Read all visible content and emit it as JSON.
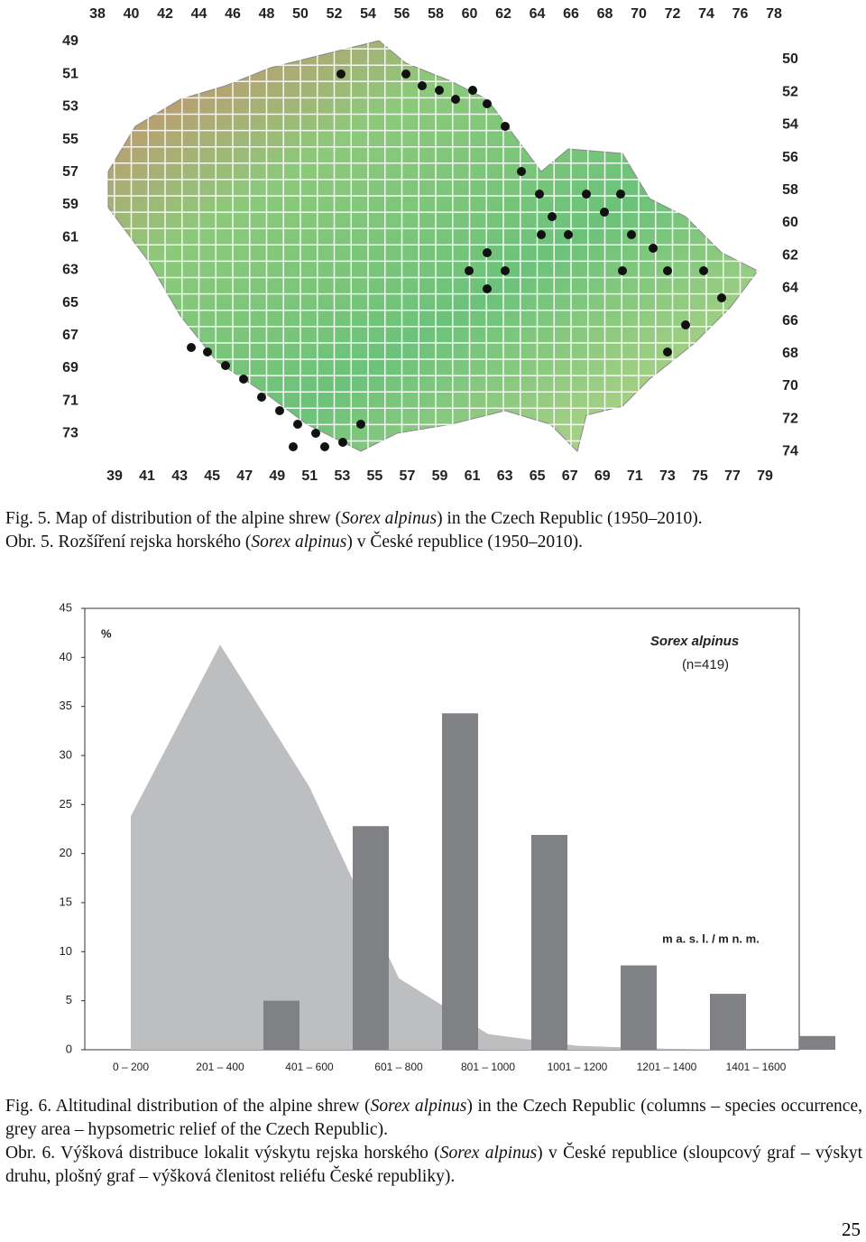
{
  "map": {
    "top_labels": [
      "38",
      "40",
      "42",
      "44",
      "46",
      "48",
      "50",
      "52",
      "54",
      "56",
      "58",
      "60",
      "62",
      "64",
      "66",
      "68",
      "70",
      "72",
      "74",
      "76",
      "78"
    ],
    "bottom_labels": [
      "39",
      "41",
      "43",
      "45",
      "47",
      "49",
      "51",
      "53",
      "55",
      "57",
      "59",
      "61",
      "63",
      "65",
      "67",
      "69",
      "71",
      "73",
      "75",
      "77",
      "79"
    ],
    "left_labels": [
      "49",
      "51",
      "53",
      "55",
      "57",
      "59",
      "61",
      "63",
      "65",
      "67",
      "69",
      "71",
      "73"
    ],
    "right_labels": [
      "50",
      "52",
      "54",
      "56",
      "58",
      "60",
      "62",
      "64",
      "66",
      "68",
      "70",
      "72",
      "74"
    ]
  },
  "fig5_caption_en": [
    "Fig. 5. Map of distribution of the alpine shrew (",
    "Sorex alpinus",
    ") in the Czech Republic (1950–2010)."
  ],
  "fig5_caption_cz": [
    "Obr. 5. Rozšíření rejska horského (",
    "Sorex alpinus",
    ") v České republice (1950–2010)."
  ],
  "chart_data": {
    "type": "bar",
    "y_unit_label": "%",
    "annotation_title": "Sorex alpinus",
    "annotation_n": "(n=419)",
    "x_label": "m a. s. l. / m n. m.",
    "categories": [
      "0 – 200",
      "201 – 400",
      "401 – 600",
      "601 – 800",
      "801 – 1000",
      "1001 – 1200",
      "1201 – 1400",
      "1401 – 1600"
    ],
    "series": [
      {
        "type": "area",
        "color": "#bdbec0",
        "values": [
          23.8,
          41.3,
          26.8,
          7.3,
          1.6,
          0.4,
          0.1,
          0
        ]
      },
      {
        "type": "bar",
        "color": "#808184",
        "values": [
          0,
          5,
          22.8,
          34.3,
          21.9,
          8.6,
          5.7,
          1.4
        ]
      }
    ],
    "ylim": [
      0,
      45
    ],
    "yticks": [
      0,
      5,
      10,
      15,
      20,
      25,
      30,
      35,
      40,
      45
    ]
  },
  "fig6_caption_en": [
    "Fig. 6. Altitudinal distribution of the alpine shrew (",
    "Sorex alpinus",
    ") in the Czech Republic (columns – species occurrence, grey area – hypsometric relief of the Czech Republic)."
  ],
  "fig6_caption_cz": [
    "Obr. 6. Výšková distribuce lokalit výskytu rejska horského (",
    "Sorex alpinus",
    ") v České republice (sloupcový graf – výskyt druhu, plošný graf – výšková členitost reliéfu České republiky)."
  ],
  "page_number": "25"
}
